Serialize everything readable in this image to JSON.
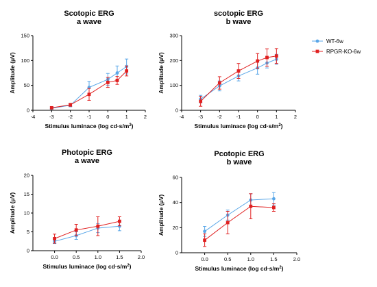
{
  "legend": {
    "placement": "right",
    "items": [
      {
        "name": "WT-6w",
        "color": "#5aa7e8",
        "marker": "circle"
      },
      {
        "name": "RPGR-KO-6w",
        "color": "#e02020",
        "marker": "square"
      }
    ]
  },
  "chart_data": [
    {
      "id": "scotopic-a",
      "type": "line",
      "title": [
        "Scotopic ERG",
        "a wave"
      ],
      "xlabel": "Stimulus luminace (log cd·s/m",
      "xlabel_sup": "2",
      "xlabel_end": ")",
      "ylabel": "Amplitude (μV)",
      "xlim": [
        -4,
        2
      ],
      "ylim": [
        0,
        150
      ],
      "xticks": [
        "-4",
        "-3",
        "-2",
        "-1",
        "0",
        "1",
        "2"
      ],
      "yticks": [
        "0",
        "50",
        "100",
        "150"
      ],
      "series": [
        {
          "name": "WT-6w",
          "x": [
            -3,
            -2,
            -1,
            0,
            0.5,
            1
          ],
          "y": [
            4,
            10,
            46,
            62,
            75,
            88
          ],
          "err": [
            2,
            3,
            12,
            12,
            14,
            15
          ]
        },
        {
          "name": "RPGR-KO-6w",
          "x": [
            -3,
            -2,
            -1,
            0,
            0.5,
            1
          ],
          "y": [
            5,
            11,
            32,
            56,
            60,
            79
          ],
          "err": [
            2,
            3,
            12,
            10,
            8,
            10
          ]
        }
      ]
    },
    {
      "id": "scotopic-b",
      "type": "line",
      "title": [
        "scotopic ERG",
        "b wave"
      ],
      "xlabel": "Stimulus luminace (log cd·s/m",
      "xlabel_sup": "2",
      "xlabel_end": ")",
      "ylabel": "Amplitude (μV)",
      "xlim": [
        -4,
        2
      ],
      "ylim": [
        0,
        300
      ],
      "xticks": [
        "-4",
        "-3",
        "-2",
        "-1",
        "0",
        "1",
        "2"
      ],
      "yticks": [
        "0",
        "100",
        "200",
        "300"
      ],
      "series": [
        {
          "name": "WT-6w",
          "x": [
            -3,
            -2,
            -1,
            0,
            0.5,
            1
          ],
          "y": [
            45,
            98,
            138,
            170,
            190,
            205
          ],
          "err": [
            15,
            20,
            20,
            25,
            20,
            20
          ]
        },
        {
          "name": "RPGR-KO-6w",
          "x": [
            -3,
            -2,
            -1,
            0,
            0.5,
            1
          ],
          "y": [
            36,
            110,
            158,
            198,
            212,
            218
          ],
          "err": [
            20,
            25,
            30,
            30,
            35,
            30
          ]
        }
      ]
    },
    {
      "id": "photopic-a",
      "type": "line",
      "title": [
        "Photopic ERG",
        "a wave"
      ],
      "xlabel": "Stimulus luminace (log cd·s/m",
      "xlabel_sup": "2",
      "xlabel_end": ")",
      "ylabel": "Amplitude (μV)",
      "xlim": [
        -0.5,
        2.0
      ],
      "ylim": [
        0,
        20
      ],
      "xticks": [
        "0.0",
        "0.5",
        "1.0",
        "1.5",
        "2.0"
      ],
      "yticks": [
        "0",
        "5",
        "10",
        "15",
        "20"
      ],
      "series": [
        {
          "name": "WT-6w",
          "x": [
            0,
            0.5,
            1,
            1.5
          ],
          "y": [
            2.5,
            4.0,
            6.0,
            6.5
          ],
          "err": [
            0.6,
            1.0,
            1.2,
            1.2
          ]
        },
        {
          "name": "RPGR-KO-6w",
          "x": [
            0,
            0.5,
            1,
            1.5
          ],
          "y": [
            3.2,
            5.5,
            6.5,
            7.8
          ],
          "err": [
            1.2,
            1.5,
            2.5,
            1.2
          ]
        }
      ]
    },
    {
      "id": "photopic-b",
      "type": "line",
      "title": [
        "Pcotopic ERG",
        "b wave"
      ],
      "xlabel": "Stimulus luminace (log cd·s/m",
      "xlabel_sup": "2",
      "xlabel_end": ")",
      "ylabel": "Amplitude (μV)",
      "xlim": [
        -0.5,
        2.0
      ],
      "ylim": [
        0,
        60
      ],
      "xticks": [
        "0.0",
        "0.5",
        "1.0",
        "1.5",
        "2.0"
      ],
      "yticks": [
        "0",
        "20",
        "40",
        "60"
      ],
      "series": [
        {
          "name": "WT-6w",
          "x": [
            0,
            0.5,
            1,
            1.5
          ],
          "y": [
            17,
            30,
            42,
            43
          ],
          "err": [
            4,
            4,
            5,
            5
          ]
        },
        {
          "name": "RPGR-KO-6w",
          "x": [
            0,
            0.5,
            1,
            1.5
          ],
          "y": [
            10,
            24,
            37,
            36
          ],
          "err": [
            5,
            9,
            10,
            3
          ]
        }
      ]
    }
  ]
}
